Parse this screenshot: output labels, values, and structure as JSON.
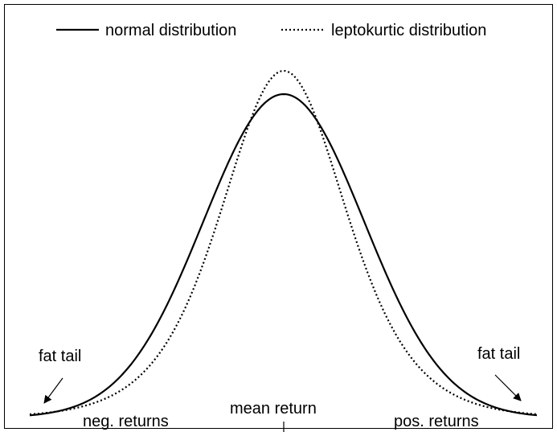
{
  "chart_data": {
    "type": "line",
    "title": "",
    "xlabel": "",
    "ylabel": "",
    "legend_position": "top",
    "series": [
      {
        "name": "normal distribution",
        "style": "solid",
        "color": "#000000"
      },
      {
        "name": "leptokurtic distribution",
        "style": "dotted",
        "color": "#000000"
      }
    ],
    "annotations": {
      "left_tail": "fat tail",
      "right_tail": "fat tail",
      "left_axis_label": "neg. returns",
      "center_axis_label": "mean return",
      "right_axis_label": "pos. returns"
    }
  }
}
